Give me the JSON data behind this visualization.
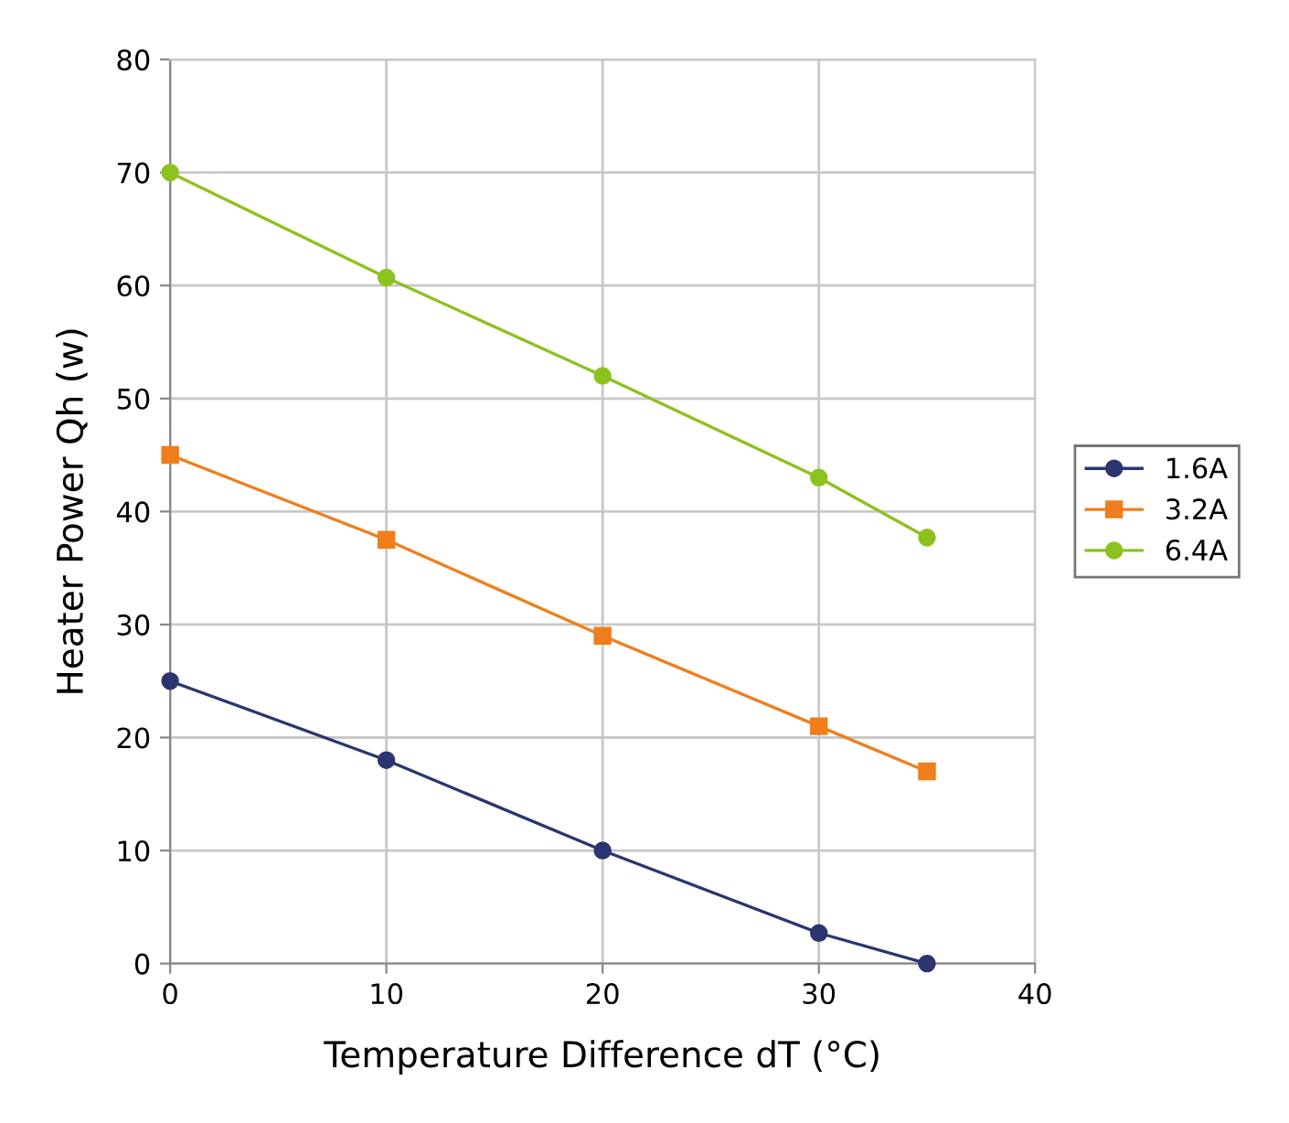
{
  "chart_data": {
    "type": "line",
    "xlabel": "Temperature Difference dT (°C)",
    "ylabel": "Heater Power Qh (w)",
    "x": [
      0,
      10,
      20,
      30,
      35
    ],
    "series": [
      {
        "name": "1.6A",
        "color": "#2b3570",
        "marker": "circle",
        "values": [
          25,
          18,
          10,
          2.7,
          0
        ]
      },
      {
        "name": "3.2A",
        "color": "#f07e1c",
        "marker": "square",
        "values": [
          45,
          37.5,
          29,
          21,
          17
        ]
      },
      {
        "name": "6.4A",
        "color": "#8cc21e",
        "marker": "circle",
        "values": [
          70,
          60.7,
          52,
          43,
          37.7
        ]
      }
    ],
    "xlim": [
      0,
      40
    ],
    "xticks": [
      0,
      10,
      20,
      30,
      40
    ],
    "ylim": [
      0,
      80
    ],
    "yticks": [
      0,
      10,
      20,
      30,
      40,
      50,
      60,
      70,
      80
    ],
    "grid": true,
    "legend": "right",
    "line_style": "solid"
  }
}
